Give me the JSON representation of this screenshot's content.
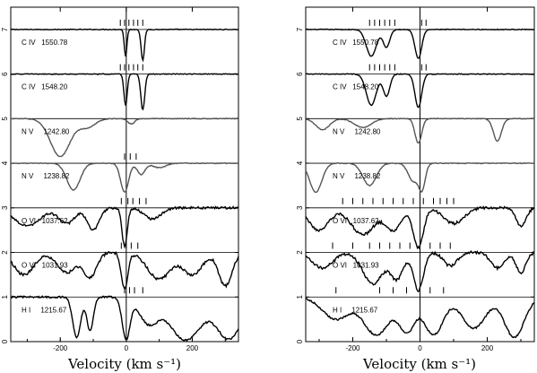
{
  "figure": {
    "background": "#ffffff",
    "frame_color": "#000000"
  },
  "chart_data": [
    {
      "type": "line",
      "title": "",
      "xlabel": "Velocity (km s⁻¹)",
      "ylabel": "",
      "xlim": [
        -350,
        340
      ],
      "ylim": [
        0,
        7.5
      ],
      "x_ticks": [
        -200,
        0,
        200
      ],
      "y_ticks": [
        0,
        1,
        2,
        3,
        4,
        5,
        6,
        7
      ],
      "grid": false,
      "legend": "none",
      "center_line_x": 0,
      "series": [
        {
          "label_text": "C IV   1550.78",
          "offset": 6,
          "color": "#000000",
          "absorptions": [
            [
              -2,
              0.6,
              4
            ],
            [
              50,
              0.7,
              5
            ]
          ],
          "ticks": [
            -18,
            -5,
            8,
            22,
            35,
            50
          ]
        },
        {
          "label_text": "C IV   1548.20",
          "offset": 5,
          "color": "#000000",
          "absorptions": [
            [
              -2,
              0.7,
              5
            ],
            [
              50,
              0.8,
              6
            ]
          ],
          "ticks": [
            -18,
            -5,
            8,
            22,
            35,
            50
          ]
        },
        {
          "label_text": "N V     1242.80",
          "offset": 4,
          "color": "#555555",
          "absorptions": [
            [
              -200,
              0.85,
              30
            ],
            [
              -120,
              0.2,
              25
            ],
            [
              15,
              0.12,
              10
            ]
          ],
          "ticks": []
        },
        {
          "label_text": "N V     1238.82",
          "offset": 3,
          "color": "#555555",
          "absorptions": [
            [
              -160,
              0.6,
              20
            ],
            [
              -5,
              0.65,
              12
            ],
            [
              45,
              0.25,
              12
            ],
            [
              100,
              0.1,
              20
            ]
          ],
          "ticks": [
            -5,
            12,
            30
          ]
        },
        {
          "label_text": "O VI   1037.62",
          "offset": 2,
          "color": "#000000",
          "absorptions": [
            [
              -300,
              0.4,
              40
            ],
            [
              -180,
              0.35,
              25
            ],
            [
              -100,
              0.5,
              18
            ],
            [
              -5,
              0.85,
              8
            ],
            [
              80,
              0.25,
              25
            ]
          ],
          "ticks": [
            -15,
            5,
            20,
            40,
            60
          ],
          "noise": 0.025
        },
        {
          "label_text": "O VI   1031.93",
          "offset": 1,
          "color": "#000000",
          "absorptions": [
            [
              -310,
              0.5,
              30
            ],
            [
              -180,
              0.45,
              30
            ],
            [
              -110,
              0.55,
              20
            ],
            [
              -5,
              0.8,
              10
            ],
            [
              100,
              0.6,
              35
            ],
            [
              200,
              0.5,
              30
            ],
            [
              300,
              0.75,
              20
            ]
          ],
          "ticks": [
            -15,
            0,
            15,
            35
          ],
          "noise": 0.03
        },
        {
          "label_text": "H I     1215.67",
          "offset": 0,
          "color": "#000000",
          "absorptions": [
            [
              -150,
              0.9,
              12
            ],
            [
              -110,
              0.75,
              10
            ],
            [
              0,
              0.95,
              12
            ],
            [
              70,
              0.6,
              30
            ],
            [
              180,
              0.97,
              50
            ],
            [
              310,
              0.95,
              40
            ]
          ],
          "ticks": [
            -5,
            10,
            25,
            50
          ],
          "noise": 0.02
        }
      ]
    },
    {
      "type": "line",
      "title": "",
      "xlabel": "Velocity (km s⁻¹)",
      "ylabel": "",
      "xlim": [
        -340,
        340
      ],
      "ylim": [
        0,
        7.5
      ],
      "x_ticks": [
        -200,
        0,
        200
      ],
      "y_ticks": [
        0,
        1,
        2,
        3,
        4,
        5,
        6,
        7
      ],
      "grid": false,
      "legend": "none",
      "center_line_x": 0,
      "series": [
        {
          "label_text": "C IV   1550.78",
          "offset": 6,
          "color": "#000000",
          "absorptions": [
            [
              -145,
              0.6,
              15
            ],
            [
              -100,
              0.4,
              10
            ],
            [
              -5,
              0.65,
              10
            ]
          ],
          "ticks": [
            -150,
            -135,
            -120,
            -105,
            -90,
            -75,
            5,
            18
          ]
        },
        {
          "label_text": "C IV   1548.20",
          "offset": 5,
          "color": "#000000",
          "absorptions": [
            [
              -145,
              0.7,
              15
            ],
            [
              -100,
              0.5,
              10
            ],
            [
              -5,
              0.75,
              10
            ]
          ],
          "ticks": [
            -150,
            -135,
            -120,
            -105,
            -90,
            -75,
            5,
            18
          ]
        },
        {
          "label_text": "N V     1242.80",
          "offset": 4,
          "color": "#555555",
          "absorptions": [
            [
              -290,
              0.25,
              20
            ],
            [
              -170,
              0.2,
              25
            ],
            [
              -5,
              0.55,
              10
            ],
            [
              230,
              0.5,
              12
            ]
          ],
          "ticks": []
        },
        {
          "label_text": "N V     1238.82",
          "offset": 3,
          "color": "#555555",
          "absorptions": [
            [
              -310,
              0.65,
              18
            ],
            [
              -150,
              0.5,
              20
            ],
            [
              -20,
              0.4,
              15
            ],
            [
              5,
              0.6,
              10
            ]
          ],
          "ticks": []
        },
        {
          "label_text": "O VI   1037.62",
          "offset": 2,
          "color": "#000000",
          "absorptions": [
            [
              -300,
              0.5,
              30
            ],
            [
              -170,
              0.6,
              35
            ],
            [
              -80,
              0.5,
              25
            ],
            [
              -5,
              0.9,
              15
            ],
            [
              100,
              0.35,
              30
            ],
            [
              300,
              0.4,
              15
            ]
          ],
          "ticks": [
            -230,
            -200,
            -170,
            -140,
            -110,
            -80,
            -50,
            -20,
            10,
            40,
            60,
            80,
            100
          ],
          "noise": 0.03
        },
        {
          "label_text": "O VI   1031.93",
          "offset": 1,
          "color": "#000000",
          "absorptions": [
            [
              -290,
              0.35,
              30
            ],
            [
              -140,
              0.7,
              30
            ],
            [
              -70,
              0.6,
              20
            ],
            [
              -5,
              0.85,
              15
            ],
            [
              90,
              0.3,
              20
            ],
            [
              230,
              0.35,
              20
            ],
            [
              300,
              0.45,
              15
            ]
          ],
          "ticks": [
            -260,
            -200,
            -150,
            -120,
            -90,
            -60,
            -30,
            0,
            30,
            60,
            90
          ],
          "noise": 0.03
        },
        {
          "label_text": "H I     1215.67",
          "offset": 0,
          "color": "#000000",
          "absorptions": [
            [
              -250,
              0.5,
              40
            ],
            [
              -130,
              0.85,
              40
            ],
            [
              -40,
              0.8,
              25
            ],
            [
              40,
              0.85,
              30
            ],
            [
              160,
              0.7,
              35
            ],
            [
              280,
              0.9,
              30
            ]
          ],
          "ticks": [
            -250,
            -120,
            -80,
            -40,
            0,
            30,
            70
          ],
          "noise": 0.02
        }
      ]
    }
  ]
}
